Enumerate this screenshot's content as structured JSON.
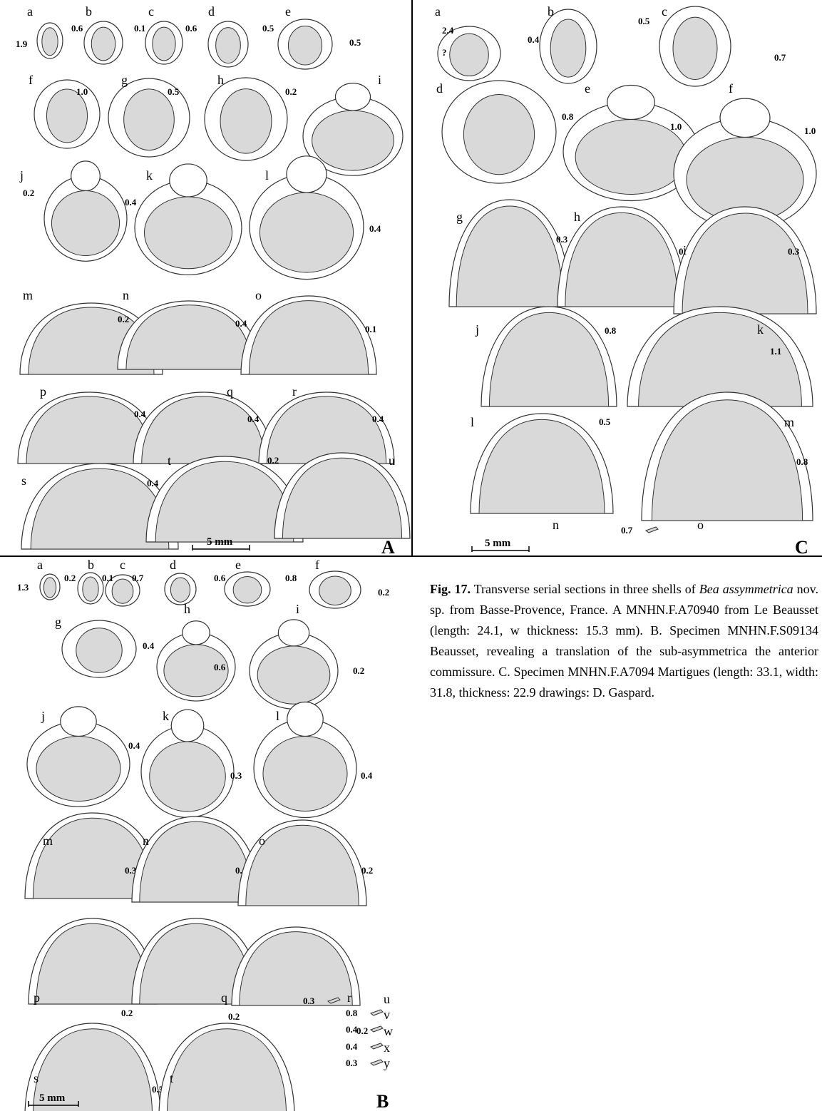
{
  "figure": {
    "caption_label": "Fig. 17.",
    "caption_parts": [
      {
        "text": " Transverse serial sections in three shells of ",
        "style": "normal"
      },
      {
        "text": "Bea",
        "style": "italic"
      },
      {
        "text": " ",
        "style": "normal"
      },
      {
        "text": "assymmetrica",
        "style": "italic"
      },
      {
        "text": " nov. sp. from Basse-Provence, France. A MNHN.F.A70940 from Le Beausset (length: 24.1, w thickness: 15.3 mm). B. Specimen MNHN.F.S09134 Beausset, revealing a translation of the sub-asymmetrica the anterior commissure. C. Specimen MNHN.F.A7094 Martigues (length: 33.1, width: 31.8, thickness: 22.9 drawings: D. Gaspard.",
        "style": "normal"
      }
    ]
  },
  "plates": [
    {
      "id": "A",
      "scale_bar": "5 mm",
      "sections": [
        {
          "label": "a",
          "value": "0.6",
          "extra": "1.9"
        },
        {
          "label": "b",
          "value": "0.1"
        },
        {
          "label": "c",
          "value": "0.6"
        },
        {
          "label": "d",
          "value": "0.5"
        },
        {
          "label": "e",
          "value": "0.5"
        },
        {
          "label": "f",
          "value": "1.0"
        },
        {
          "label": "g",
          "value": "0.5"
        },
        {
          "label": "h",
          "value": "0.2"
        },
        {
          "label": "i",
          "value": ""
        },
        {
          "label": "j",
          "value": "0.2"
        },
        {
          "label": "k",
          "value": "0.4"
        },
        {
          "label": "l",
          "value": "0.4"
        },
        {
          "label": "",
          "value": "0.2"
        },
        {
          "label": "m",
          "value": "0.2"
        },
        {
          "label": "n",
          "value": "0.4"
        },
        {
          "label": "o",
          "value": "0.1"
        },
        {
          "label": "p",
          "value": "0.4"
        },
        {
          "label": "q",
          "value": "0.4"
        },
        {
          "label": "r",
          "value": "0.4"
        },
        {
          "label": "s",
          "value": "0.4"
        },
        {
          "label": "t",
          "value": "0.2"
        },
        {
          "label": "u",
          "value": ""
        }
      ]
    },
    {
      "id": "C",
      "scale_bar": "5 mm",
      "sections": [
        {
          "label": "a",
          "value": "2.4",
          "extra": "?"
        },
        {
          "label": "b",
          "value": "0.4"
        },
        {
          "label": "c",
          "value": "0.5"
        },
        {
          "label": "",
          "value": "0.7"
        },
        {
          "label": "d",
          "value": "0.8"
        },
        {
          "label": "e",
          "value": "1.0"
        },
        {
          "label": "f",
          "value": "1.0"
        },
        {
          "label": "g",
          "value": "0.3"
        },
        {
          "label": "h",
          "value": "0.1"
        },
        {
          "label": "i",
          "value": "0.3"
        },
        {
          "label": "j",
          "value": "0.8"
        },
        {
          "label": "k",
          "value": "1.1"
        },
        {
          "label": "l",
          "value": "0.5"
        },
        {
          "label": "m",
          "value": "0.8"
        },
        {
          "label": "n",
          "value": "0.7"
        },
        {
          "label": "o",
          "value": ""
        }
      ]
    },
    {
      "id": "B",
      "scale_bar": "5 mm",
      "sections": [
        {
          "label": "a",
          "value": "1.3"
        },
        {
          "label": "b",
          "value": "0.2"
        },
        {
          "label": "c",
          "value": "0.1"
        },
        {
          "label": "d",
          "value": "0.7"
        },
        {
          "label": "e",
          "value": "0.6"
        },
        {
          "label": "f",
          "value": "0.8"
        },
        {
          "label": "",
          "value": "0.2"
        },
        {
          "label": "g",
          "value": "0.4"
        },
        {
          "label": "h",
          "value": "0.6"
        },
        {
          "label": "i",
          "value": "0.2"
        },
        {
          "label": "j",
          "value": "0.4"
        },
        {
          "label": "k",
          "value": "0.3"
        },
        {
          "label": "l",
          "value": "0.4"
        },
        {
          "label": "m",
          "value": "0.3"
        },
        {
          "label": "n",
          "value": "0.1"
        },
        {
          "label": "o",
          "value": "0.2"
        },
        {
          "label": "p",
          "value": "0.2"
        },
        {
          "label": "q",
          "value": "0.2"
        },
        {
          "label": "r",
          "value": "0.2"
        },
        {
          "label": "s",
          "value": "0.5"
        },
        {
          "label": "t",
          "value": ""
        },
        {
          "label": "u",
          "value": "0.3"
        },
        {
          "label": "v",
          "value": "0.8"
        },
        {
          "label": "w",
          "value": "0.4"
        },
        {
          "label": "x",
          "value": "0.4"
        },
        {
          "label": "y",
          "value": "0.3"
        }
      ]
    }
  ]
}
